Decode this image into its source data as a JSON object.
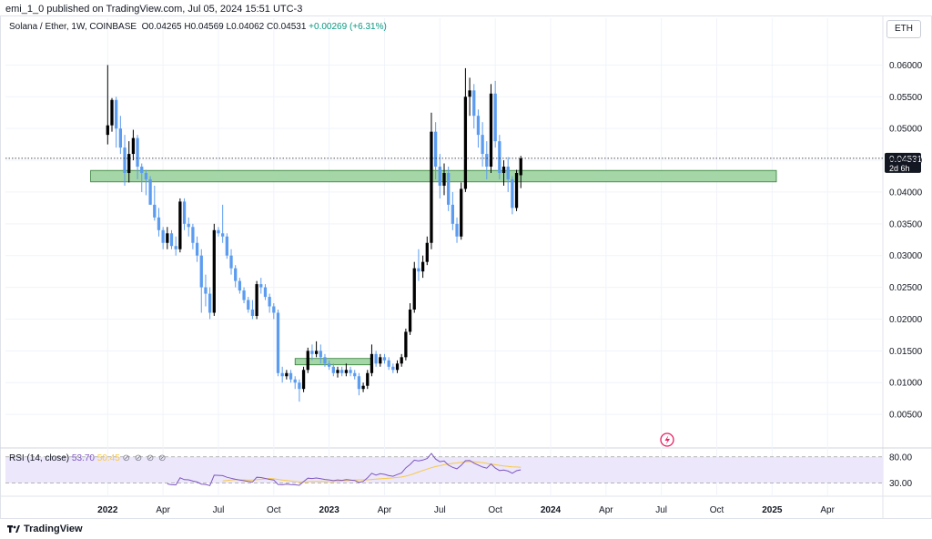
{
  "header": {
    "published_by": "emi_1_0 published on TradingView.com, Jul 05, 2024 15:51 UTC-3"
  },
  "legend": {
    "symbol": "Solana / Ether, 1W, COINBASE",
    "open": "O0.04265",
    "high": "H0.04569",
    "low": "L0.04062",
    "close": "C0.04531",
    "change": "+0.00269 (+6.31%)"
  },
  "currency_button": "ETH",
  "price_label": {
    "value": "0.04531",
    "countdown": "2d 6h"
  },
  "rsi": {
    "title": "RSI (14, close)",
    "value": "53.70",
    "ma_value": "50.45",
    "upper_band": "80.00",
    "lower_band": "30.00"
  },
  "footer": {
    "brand": "TradingView"
  },
  "colors": {
    "up": "#000000",
    "down": "#5b9cf0",
    "zone_fill": "#a5d6a7",
    "zone_stroke": "#2e7d32",
    "rsi_line": "#7e57c2",
    "rsi_ma": "#f7c948",
    "rsi_band": "#ece7fb"
  },
  "chart_data": {
    "type": "candlestick",
    "scale": "linear",
    "y_ticks": [
      "0.06000",
      "0.05500",
      "0.05000",
      "0.04500",
      "0.04000",
      "0.03500",
      "0.03000",
      "0.02500",
      "0.02000",
      "0.01500",
      "0.01000",
      "0.00500"
    ],
    "y_tick_values": [
      0.06,
      0.055,
      0.05,
      0.045,
      0.04,
      0.035,
      0.03,
      0.025,
      0.02,
      0.015,
      0.01,
      0.005
    ],
    "ylim": [
      0.0,
      0.0645
    ],
    "x_ticks": [
      "2022",
      "Apr",
      "Jul",
      "Oct",
      "2023",
      "Apr",
      "Jul",
      "Oct",
      "2024",
      "Apr",
      "Jul",
      "Oct",
      "2025",
      "Apr"
    ],
    "x_tick_weeks": [
      0,
      13,
      26,
      39,
      52,
      65,
      78,
      91,
      104,
      117,
      130,
      143,
      156,
      169
    ],
    "x_range_weeks": [
      -24,
      182
    ],
    "zones": [
      {
        "week_start": -4,
        "week_end": 157,
        "low": 0.0416,
        "high": 0.0434
      },
      {
        "week_start": 44,
        "week_end": 62,
        "low": 0.0128,
        "high": 0.0138
      }
    ],
    "last_close": 0.04531,
    "candles_ohlc": [
      [
        0.049,
        0.06,
        0.0475,
        0.0505
      ],
      [
        0.0505,
        0.0548,
        0.0495,
        0.0545
      ],
      [
        0.0545,
        0.055,
        0.047,
        0.05
      ],
      [
        0.05,
        0.052,
        0.046,
        0.047
      ],
      [
        0.047,
        0.049,
        0.041,
        0.043
      ],
      [
        0.043,
        0.048,
        0.0415,
        0.046
      ],
      [
        0.046,
        0.0498,
        0.045,
        0.0485
      ],
      [
        0.0485,
        0.049,
        0.042,
        0.044
      ],
      [
        0.044,
        0.0445,
        0.04,
        0.043
      ],
      [
        0.043,
        0.0435,
        0.0395,
        0.042
      ],
      [
        0.042,
        0.0425,
        0.038,
        0.038
      ],
      [
        0.038,
        0.041,
        0.0355,
        0.036
      ],
      [
        0.036,
        0.0375,
        0.033,
        0.034
      ],
      [
        0.034,
        0.0345,
        0.031,
        0.032
      ],
      [
        0.032,
        0.0345,
        0.031,
        0.0335
      ],
      [
        0.0335,
        0.034,
        0.031,
        0.0315
      ],
      [
        0.0315,
        0.033,
        0.03,
        0.031
      ],
      [
        0.031,
        0.039,
        0.0305,
        0.0385
      ],
      [
        0.0385,
        0.039,
        0.034,
        0.035
      ],
      [
        0.035,
        0.036,
        0.033,
        0.0345
      ],
      [
        0.0345,
        0.035,
        0.031,
        0.032
      ],
      [
        0.032,
        0.033,
        0.029,
        0.03
      ],
      [
        0.03,
        0.031,
        0.021,
        0.025
      ],
      [
        0.025,
        0.027,
        0.022,
        0.024
      ],
      [
        0.024,
        0.025,
        0.02,
        0.021
      ],
      [
        0.021,
        0.035,
        0.0205,
        0.034
      ],
      [
        0.034,
        0.0345,
        0.033,
        0.0335
      ],
      [
        0.0335,
        0.038,
        0.032,
        0.033
      ],
      [
        0.033,
        0.0335,
        0.0295,
        0.03
      ],
      [
        0.03,
        0.031,
        0.027,
        0.028
      ],
      [
        0.028,
        0.0285,
        0.025,
        0.026
      ],
      [
        0.026,
        0.0265,
        0.024,
        0.0245
      ],
      [
        0.0245,
        0.025,
        0.0225,
        0.023
      ],
      [
        0.023,
        0.0235,
        0.021,
        0.0215
      ],
      [
        0.0215,
        0.023,
        0.02,
        0.0205
      ],
      [
        0.0205,
        0.026,
        0.02,
        0.0255
      ],
      [
        0.0255,
        0.0265,
        0.024,
        0.025
      ],
      [
        0.025,
        0.0255,
        0.023,
        0.0235
      ],
      [
        0.0235,
        0.024,
        0.021,
        0.022
      ],
      [
        0.022,
        0.0225,
        0.02,
        0.021
      ],
      [
        0.021,
        0.0215,
        0.011,
        0.0115
      ],
      [
        0.0115,
        0.0125,
        0.01,
        0.011
      ],
      [
        0.011,
        0.012,
        0.0105,
        0.0115
      ],
      [
        0.0115,
        0.012,
        0.01,
        0.0105
      ],
      [
        0.0105,
        0.011,
        0.009,
        0.01
      ],
      [
        0.01,
        0.0105,
        0.007,
        0.009
      ],
      [
        0.009,
        0.0125,
        0.0085,
        0.012
      ],
      [
        0.012,
        0.0155,
        0.0115,
        0.015
      ],
      [
        0.015,
        0.016,
        0.0135,
        0.0145
      ],
      [
        0.0145,
        0.0165,
        0.014,
        0.015
      ],
      [
        0.015,
        0.016,
        0.013,
        0.014
      ],
      [
        0.014,
        0.0145,
        0.0125,
        0.013
      ],
      [
        0.013,
        0.0135,
        0.012,
        0.0125
      ],
      [
        0.0125,
        0.013,
        0.011,
        0.0115
      ],
      [
        0.0115,
        0.0125,
        0.0108,
        0.012
      ],
      [
        0.012,
        0.0125,
        0.011,
        0.0115
      ],
      [
        0.0115,
        0.013,
        0.011,
        0.012
      ],
      [
        0.012,
        0.0125,
        0.011,
        0.0115
      ],
      [
        0.0115,
        0.012,
        0.0105,
        0.011
      ],
      [
        0.011,
        0.0115,
        0.008,
        0.009
      ],
      [
        0.009,
        0.01,
        0.0085,
        0.0095
      ],
      [
        0.0095,
        0.012,
        0.009,
        0.0115
      ],
      [
        0.0115,
        0.016,
        0.011,
        0.0145
      ],
      [
        0.0145,
        0.015,
        0.0125,
        0.013
      ],
      [
        0.013,
        0.0145,
        0.0125,
        0.014
      ],
      [
        0.014,
        0.0145,
        0.013,
        0.0135
      ],
      [
        0.0135,
        0.014,
        0.012,
        0.0125
      ],
      [
        0.0125,
        0.013,
        0.0115,
        0.012
      ],
      [
        0.012,
        0.0135,
        0.0115,
        0.013
      ],
      [
        0.013,
        0.0145,
        0.0125,
        0.014
      ],
      [
        0.014,
        0.0185,
        0.0135,
        0.018
      ],
      [
        0.018,
        0.0225,
        0.0175,
        0.0215
      ],
      [
        0.0215,
        0.029,
        0.021,
        0.028
      ],
      [
        0.028,
        0.031,
        0.026,
        0.0275
      ],
      [
        0.0275,
        0.03,
        0.0265,
        0.029
      ],
      [
        0.029,
        0.033,
        0.0285,
        0.032
      ],
      [
        0.032,
        0.0525,
        0.031,
        0.0495
      ],
      [
        0.0495,
        0.051,
        0.042,
        0.044
      ],
      [
        0.044,
        0.046,
        0.039,
        0.041
      ],
      [
        0.041,
        0.0445,
        0.0395,
        0.043
      ],
      [
        0.043,
        0.044,
        0.037,
        0.038
      ],
      [
        0.038,
        0.04,
        0.034,
        0.035
      ],
      [
        0.035,
        0.036,
        0.032,
        0.033
      ],
      [
        0.033,
        0.0415,
        0.0325,
        0.0405
      ],
      [
        0.0405,
        0.0595,
        0.04,
        0.055
      ],
      [
        0.055,
        0.058,
        0.052,
        0.056
      ],
      [
        0.056,
        0.057,
        0.05,
        0.052
      ],
      [
        0.052,
        0.053,
        0.047,
        0.049
      ],
      [
        0.049,
        0.051,
        0.044,
        0.046
      ],
      [
        0.046,
        0.048,
        0.042,
        0.044
      ],
      [
        0.044,
        0.057,
        0.043,
        0.0555
      ],
      [
        0.0555,
        0.0575,
        0.047,
        0.048
      ],
      [
        0.048,
        0.049,
        0.042,
        0.043
      ],
      [
        0.043,
        0.045,
        0.041,
        0.044
      ],
      [
        0.044,
        0.0455,
        0.04,
        0.042
      ],
      [
        0.042,
        0.0425,
        0.0365,
        0.0375
      ],
      [
        0.0375,
        0.0435,
        0.037,
        0.043
      ],
      [
        0.04265,
        0.04569,
        0.04062,
        0.04531
      ]
    ]
  }
}
